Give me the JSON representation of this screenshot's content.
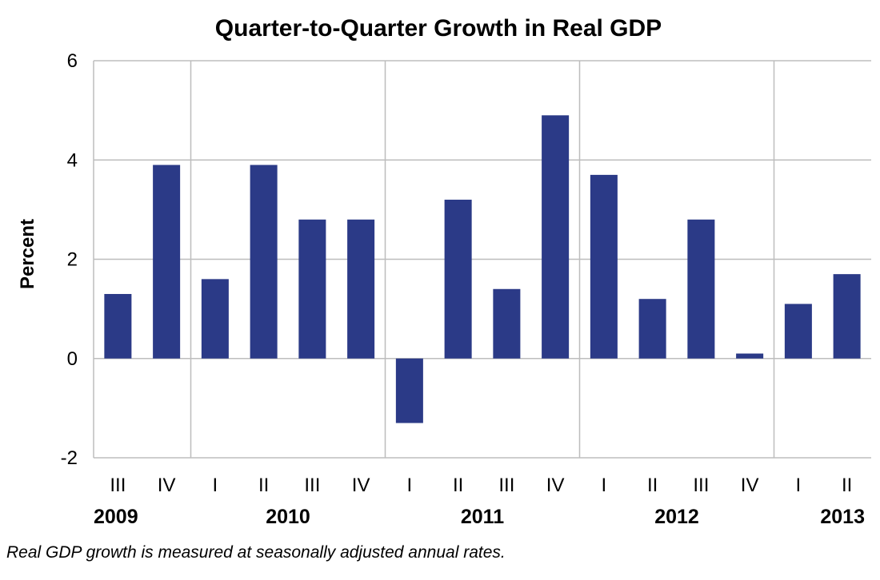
{
  "chart_data": {
    "type": "bar",
    "title": "Quarter-to-Quarter Growth in Real GDP",
    "ylabel": "Percent",
    "xlabel": "",
    "ylim": [
      -2,
      6
    ],
    "yticks": [
      -2,
      0,
      2,
      4,
      6
    ],
    "grid": true,
    "bar_color": "#2b3a87",
    "categories": [
      "III",
      "IV",
      "I",
      "II",
      "III",
      "IV",
      "I",
      "II",
      "III",
      "IV",
      "I",
      "II",
      "III",
      "IV",
      "I",
      "II"
    ],
    "values": [
      1.3,
      3.9,
      1.6,
      3.9,
      2.8,
      2.8,
      -1.3,
      3.2,
      1.4,
      4.9,
      3.7,
      1.2,
      2.8,
      0.1,
      1.1,
      1.7
    ],
    "year_groups": [
      {
        "label": "2009",
        "start": 0,
        "count": 2
      },
      {
        "label": "2010",
        "start": 2,
        "count": 4
      },
      {
        "label": "2011",
        "start": 6,
        "count": 4
      },
      {
        "label": "2012",
        "start": 10,
        "count": 4
      },
      {
        "label": "2013",
        "start": 14,
        "count": 2
      }
    ],
    "footnote": "Real GDP growth is measured at seasonally adjusted annual rates."
  }
}
